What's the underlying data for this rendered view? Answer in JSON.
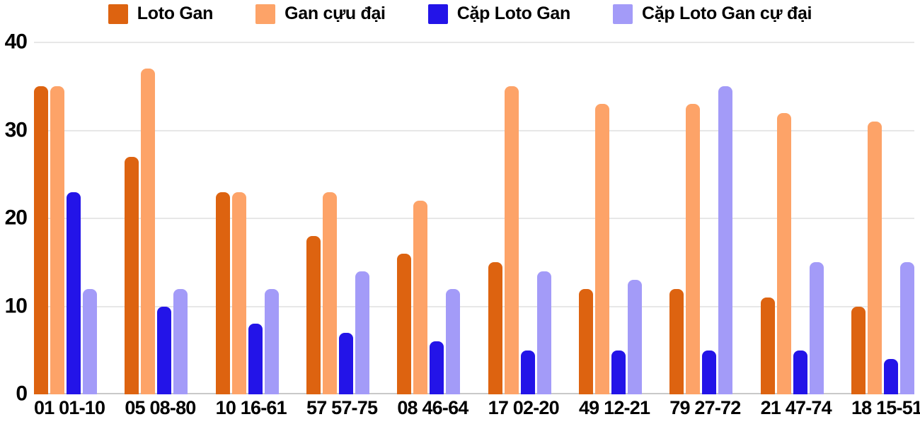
{
  "chart_data": {
    "type": "bar",
    "title": "",
    "xlabel": "",
    "ylabel": "",
    "ylim": [
      0,
      40
    ],
    "yticks": [
      0,
      10,
      20,
      30,
      40
    ],
    "grid": true,
    "grid_color": "#E7E7E7",
    "axis_line_color": "#C9C9C9",
    "legend_position": "top",
    "categories": [
      "01 01-10",
      "05 08-80",
      "10 16-61",
      "57 57-75",
      "08 46-64",
      "17 02-20",
      "49 12-21",
      "79 27-72",
      "21 47-74",
      "18 15-51"
    ],
    "series": [
      {
        "name": "Loto Gan",
        "color": "#DD6310",
        "values": [
          35,
          27,
          23,
          18,
          16,
          15,
          12,
          12,
          11,
          10
        ]
      },
      {
        "name": "Gan cựu đại",
        "color": "#FDA368",
        "values": [
          35,
          37,
          23,
          23,
          22,
          35,
          33,
          33,
          32,
          31
        ]
      },
      {
        "name": "Cặp Loto Gan",
        "color": "#2314E8",
        "values": [
          23,
          10,
          8,
          7,
          6,
          5,
          5,
          5,
          5,
          4
        ]
      },
      {
        "name": "Cặp Loto Gan cự đại",
        "color": "#A39BF8",
        "values": [
          12,
          12,
          12,
          14,
          12,
          14,
          13,
          35,
          15,
          15
        ]
      }
    ]
  }
}
